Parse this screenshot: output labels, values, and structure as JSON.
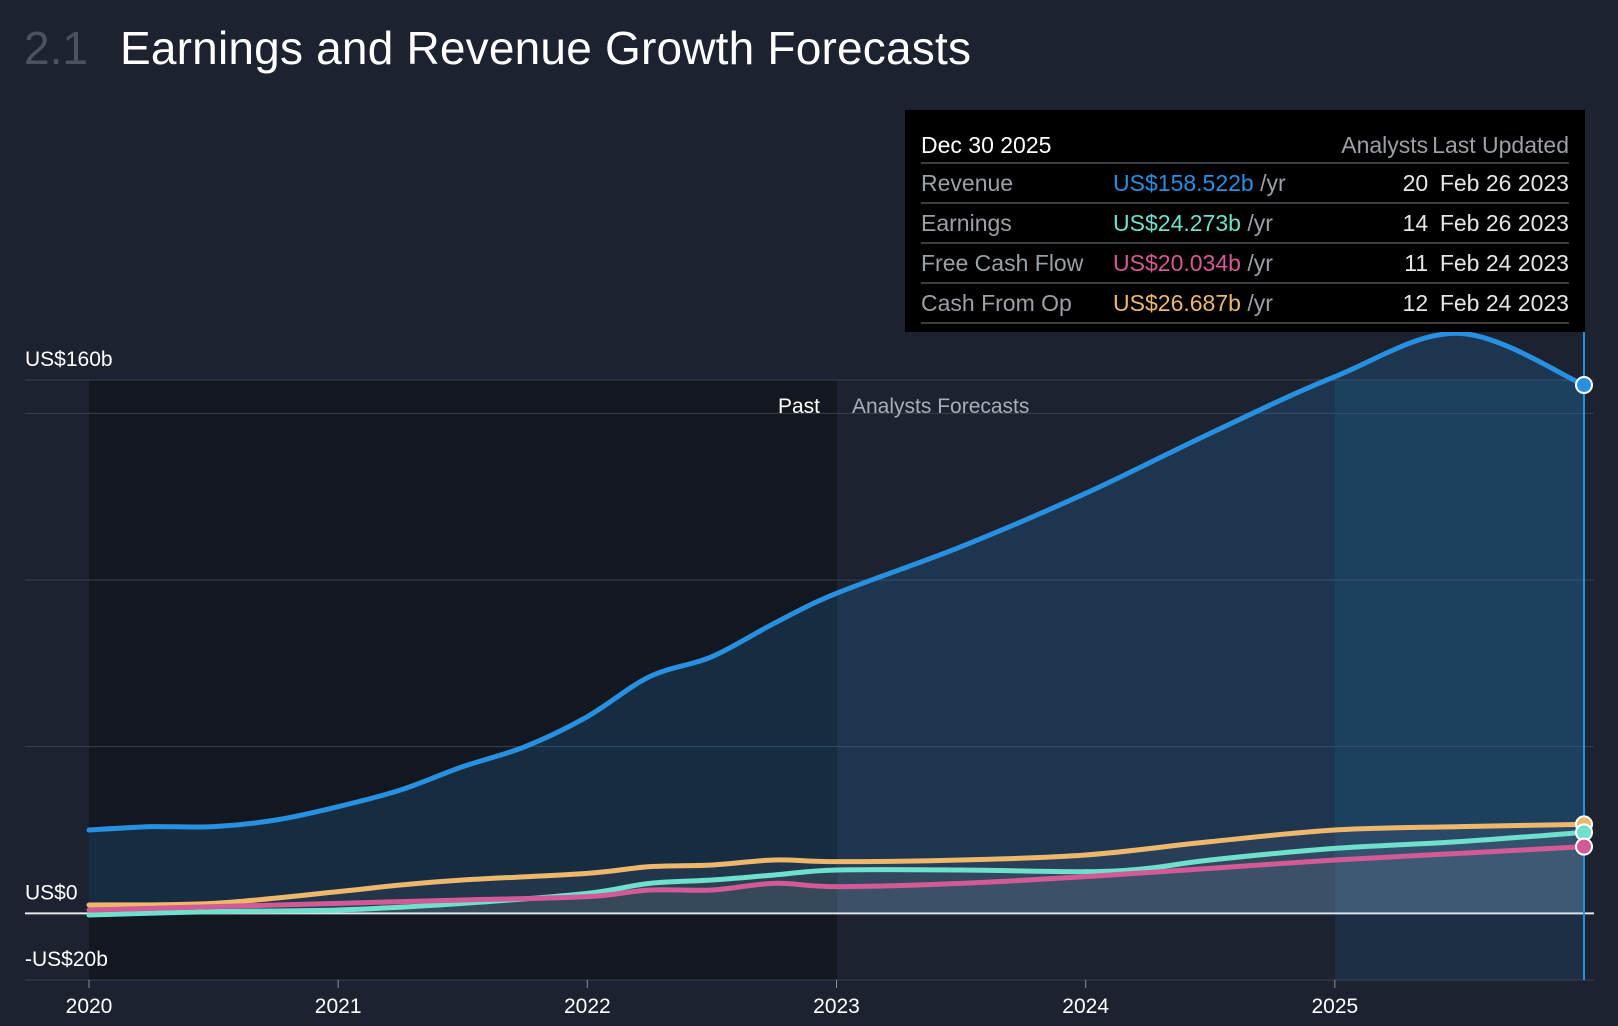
{
  "header": {
    "section_number": "2.1",
    "title": "Earnings and Revenue Growth Forecasts"
  },
  "tooltip": {
    "date": "Dec 30 2025",
    "col_analysts": "Analysts",
    "col_updated": "Last Updated",
    "unit": "/yr",
    "rows": [
      {
        "label": "Revenue",
        "value": "US$158.522b",
        "analysts": "20",
        "updated": "Feb 26 2023",
        "color": "#2790e0"
      },
      {
        "label": "Earnings",
        "value": "US$24.273b",
        "analysts": "14",
        "updated": "Feb 26 2023",
        "color": "#6ee0cc"
      },
      {
        "label": "Free Cash Flow",
        "value": "US$20.034b",
        "analysts": "11",
        "updated": "Feb 24 2023",
        "color": "#d45a96"
      },
      {
        "label": "Cash From Op",
        "value": "US$26.687b",
        "analysts": "12",
        "updated": "Feb 24 2023",
        "color": "#edb86c"
      }
    ]
  },
  "chart_data": {
    "type": "line",
    "title": "Earnings and Revenue Growth Forecasts",
    "xlabel": "",
    "ylabel": "",
    "xlim": [
      2020,
      2026
    ],
    "ylim": [
      -20,
      160
    ],
    "y_ticks": [
      160,
      0,
      -20
    ],
    "y_tick_labels": [
      "US$160b",
      "US$0",
      "-US$20b"
    ],
    "x_ticks": [
      2020,
      2021,
      2022,
      2023,
      2024,
      2025
    ],
    "x_tick_labels": [
      "2020",
      "2021",
      "2022",
      "2023",
      "2024",
      "2025"
    ],
    "past_label": "Past",
    "forecast_label": "Analysts Forecasts",
    "forecast_start": 2023.0,
    "highlight_start": 2025.0,
    "cursor_x": 2026.0,
    "series": [
      {
        "name": "Revenue",
        "color": "#2790e0",
        "fill": true,
        "x": [
          2020,
          2020.25,
          2020.5,
          2020.75,
          2021,
          2021.25,
          2021.5,
          2021.75,
          2022,
          2022.25,
          2022.5,
          2022.75,
          2023,
          2023.5,
          2024,
          2024.5,
          2025,
          2025.5,
          2026
        ],
        "y": [
          25,
          26,
          26,
          28,
          32,
          37,
          44,
          50,
          59,
          71,
          77,
          87,
          96,
          110,
          126,
          144,
          161,
          174,
          158.5
        ]
      },
      {
        "name": "Earnings",
        "color": "#6ee0cc",
        "x": [
          2020,
          2020.5,
          2021,
          2021.5,
          2022,
          2022.25,
          2022.5,
          2022.75,
          2023,
          2023.5,
          2024,
          2024.25,
          2024.5,
          2025,
          2025.5,
          2026
        ],
        "y": [
          -0.5,
          0.5,
          1,
          3,
          6,
          9,
          10,
          11.5,
          13,
          13,
          12.5,
          13.5,
          16,
          19.5,
          21.5,
          24.3
        ]
      },
      {
        "name": "Free Cash Flow",
        "color": "#d45a96",
        "x": [
          2020,
          2020.5,
          2021,
          2021.5,
          2022,
          2022.25,
          2022.5,
          2022.75,
          2023,
          2023.5,
          2024,
          2024.5,
          2025,
          2025.5,
          2026
        ],
        "y": [
          1,
          2,
          3,
          4,
          5,
          7,
          7,
          9,
          8,
          9,
          11,
          13.5,
          16,
          18,
          20
        ]
      },
      {
        "name": "Cash From Op",
        "color": "#edb86c",
        "x": [
          2020,
          2020.5,
          2021,
          2021.25,
          2021.5,
          2022,
          2022.25,
          2022.5,
          2022.75,
          2023,
          2023.5,
          2024,
          2024.5,
          2025,
          2025.5,
          2026
        ],
        "y": [
          2.5,
          3,
          6.5,
          8.5,
          10,
          12,
          14,
          14.5,
          16,
          15.5,
          16,
          17.5,
          21.5,
          25,
          26,
          26.7
        ]
      }
    ]
  }
}
